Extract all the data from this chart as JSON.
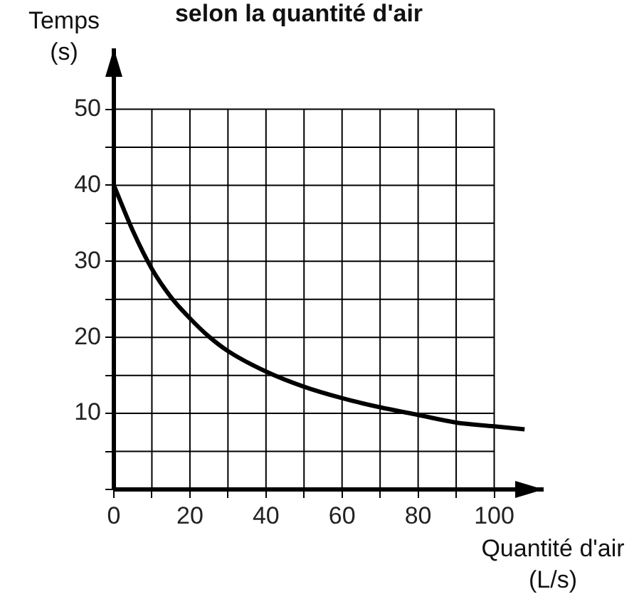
{
  "chart_data": {
    "type": "line",
    "title": "selon la quantité d'air",
    "xlabel": "Quantité d'air (L/s)",
    "ylabel": "Temps (s)",
    "x": [
      0,
      5,
      10,
      15,
      20,
      25,
      30,
      40,
      50,
      60,
      70,
      80,
      90,
      100,
      108
    ],
    "series": [
      {
        "color": "#000000",
        "values": [
          40,
          34,
          29,
          25.3,
          22.5,
          20.1,
          18.2,
          15.5,
          13.5,
          12,
          10.8,
          9.8,
          8.8,
          8.3,
          7.9
        ]
      }
    ],
    "xlim": [
      0,
      113
    ],
    "ylim": [
      0,
      58
    ],
    "xticks": [
      0,
      {
        "value": 10,
        "label": null
      },
      20,
      {
        "value": 30,
        "label": null
      },
      40,
      {
        "value": 50,
        "label": null
      },
      60,
      {
        "value": 70,
        "label": null
      },
      80,
      {
        "value": 90,
        "label": null
      },
      100
    ],
    "yticks": [
      {
        "value": 0,
        "label": null
      },
      {
        "value": 5,
        "label": null
      },
      10,
      {
        "value": 15,
        "label": null
      },
      20,
      {
        "value": 25,
        "label": null
      },
      30,
      {
        "value": 35,
        "label": null
      },
      40,
      {
        "value": 45,
        "label": null
      },
      50
    ],
    "grid": true,
    "marker": "none",
    "line_style": "solid"
  }
}
